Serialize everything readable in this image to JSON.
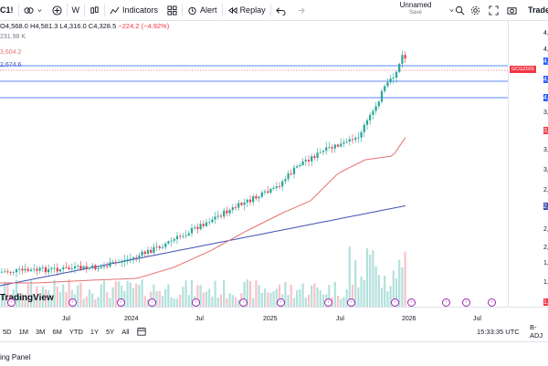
{
  "toolbar": {
    "symbol": "C1!",
    "interval": "W",
    "indicators": "Indicators",
    "alert": "Alert",
    "replay": "Replay",
    "layout_name": "Unnamed",
    "layout_status": "Save",
    "trade": "Trade"
  },
  "legend": {
    "open": "O4,568.0",
    "high": "H4,581.3",
    "low": "L4,316.0",
    "close": "C4,328.5",
    "change": "−224.2 (−4.92%)",
    "volume": "231.98 K",
    "ma1": "3,604.2",
    "ma2": "2,674.6"
  },
  "price_axis": {
    "labels": [
      "4,",
      "4,",
      "4,",
      "4,",
      "4,",
      "3,",
      "3,",
      "3,",
      "3,",
      "2,",
      "2,",
      "2,",
      "2,",
      "1,",
      "1,",
      "1,"
    ],
    "tag_symbol": "GCG2026"
  },
  "time_axis": {
    "labels": [
      "Jul",
      "2024",
      "Jul",
      "2025",
      "Jul",
      "2026",
      "Jul"
    ],
    "clock": "15:33:35 UTC",
    "adj": "B-ADJ"
  },
  "ranges": [
    "5D",
    "1M",
    "3M",
    "6M",
    "YTD",
    "1Y",
    "5Y",
    "All"
  ],
  "panel": {
    "label": "ing Panel"
  },
  "watermark": "TradingView",
  "colors": {
    "up": "#26a69a",
    "down": "#f23645",
    "ma1": "#e57373",
    "ma2": "#3f51b5",
    "hline": "#2962ff"
  }
}
